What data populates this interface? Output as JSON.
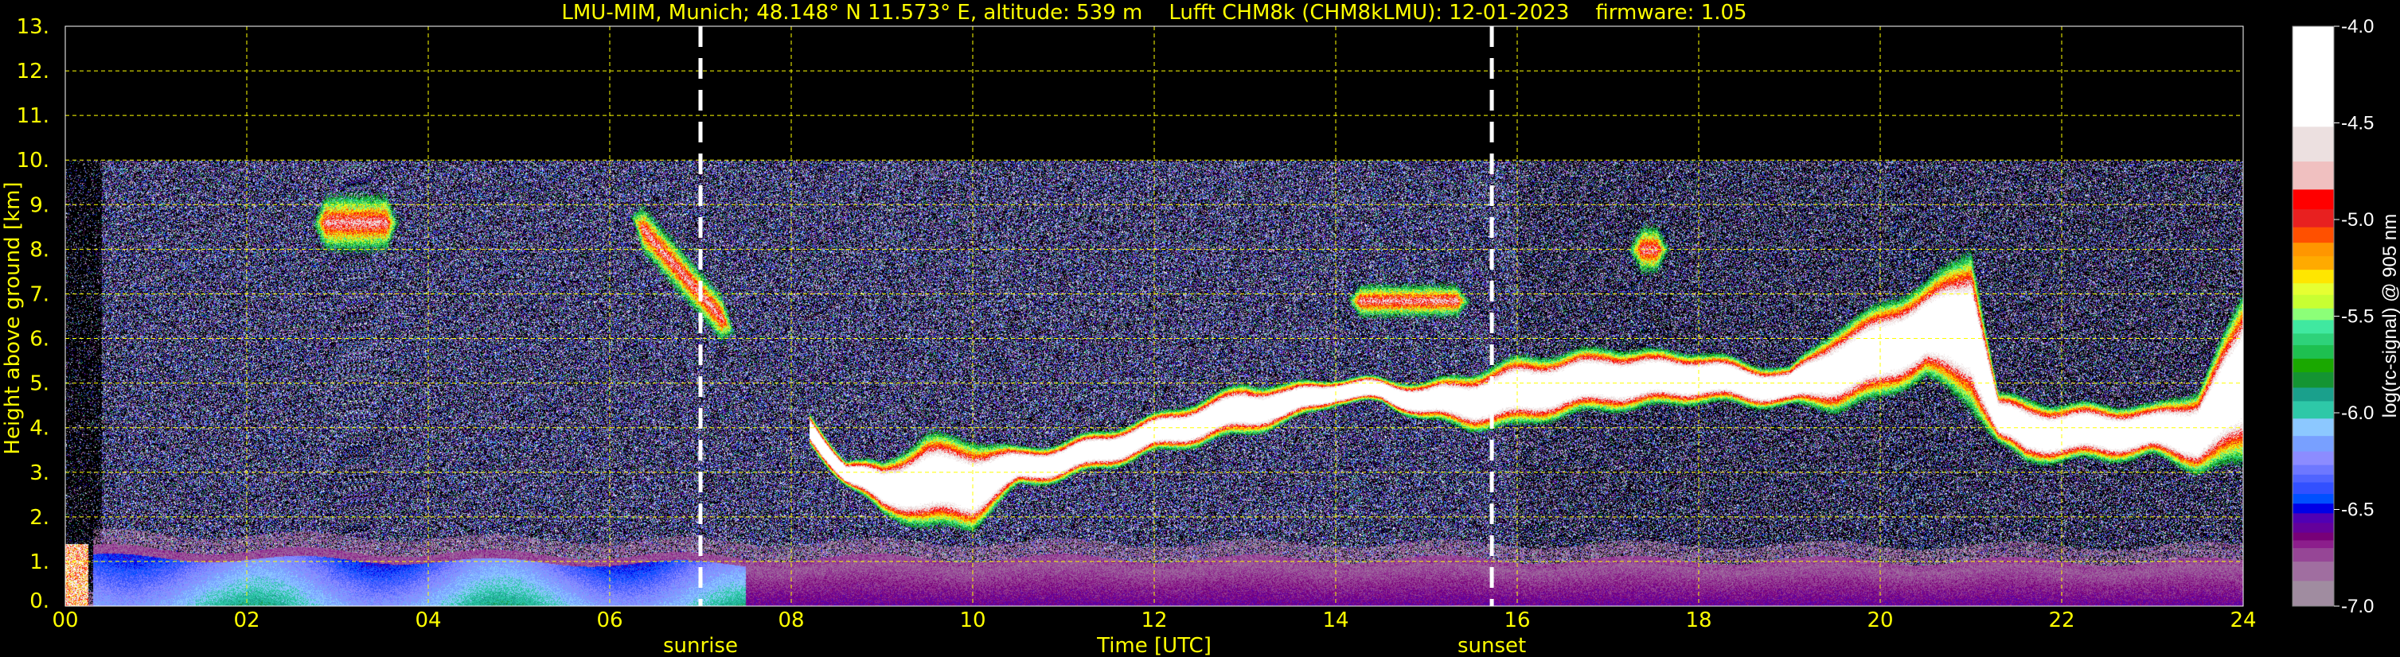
{
  "title": "LMU-MIM, Munich; 48.148° N 11.573° E, altitude: 539 m    Lufft CHM8k (CHM8kLMU): 12-01-2023    firmware: 1.05",
  "chart_data": {
    "type": "heatmap",
    "xlabel": "Time [UTC]",
    "ylabel": "Height above ground [km]",
    "xlim": [
      0,
      24
    ],
    "ylim": [
      0,
      13
    ],
    "x_ticks": [
      "00",
      "02",
      "04",
      "06",
      "08",
      "10",
      "12",
      "14",
      "16",
      "18",
      "20",
      "22",
      "24"
    ],
    "y_ticks": [
      "0.",
      "1.",
      "2.",
      "3.",
      "4.",
      "5.",
      "6.",
      "7.",
      "8.",
      "9.",
      "10.",
      "11.",
      "12.",
      "13."
    ],
    "grid": true,
    "grid_color": "#ffff00",
    "annotations": [
      {
        "label": "sunrise",
        "time": 7.0
      },
      {
        "label": "sunset",
        "time": 15.72
      }
    ],
    "signal_top_km": 10.0,
    "colorbar": {
      "label": "log(rc-signal) @ 905 nm",
      "range": [
        -7.0,
        -4.0
      ],
      "ticks": [
        "-4.0",
        "-4.5",
        "-5.0",
        "-5.5",
        "-6.0",
        "-6.5",
        "-7.0"
      ],
      "levels": [
        -4.0,
        -4.52,
        -4.7,
        -4.845,
        -4.947,
        -5.04,
        -5.12,
        -5.19,
        -5.26,
        -5.33,
        -5.39,
        -5.46,
        -5.52,
        -5.59,
        -5.65,
        -5.72,
        -5.79,
        -5.87,
        -5.94,
        -6.03,
        -6.12,
        -6.2,
        -6.27,
        -6.32,
        -6.36,
        -6.42,
        -6.47,
        -6.52,
        -6.57,
        -6.62,
        -6.66,
        -6.7,
        -6.77,
        -6.87,
        -7.0
      ],
      "colors": [
        "#ffffff",
        "#ece0e0",
        "#f0c0c0",
        "#ff0000",
        "#e82020",
        "#ff5000",
        "#ff9600",
        "#ffaa00",
        "#ffe600",
        "#e6ff32",
        "#c8ff32",
        "#8cff78",
        "#40e8a0",
        "#2ed27a",
        "#1ec050",
        "#1aa800",
        "#149432",
        "#1aa08c",
        "#2ec8a8",
        "#8cc8ff",
        "#78a0ff",
        "#8c8cff",
        "#6e78ff",
        "#5064ff",
        "#3250ff",
        "#0050ff",
        "#0000e6",
        "#5000b4",
        "#64009b",
        "#780078",
        "#8c1e8c",
        "#964696",
        "#a06ea0",
        "#a08ca0"
      ]
    },
    "cloud_layer": {
      "time": [
        8.2,
        8.6,
        9.0,
        9.5,
        10.0,
        10.5,
        11.0,
        11.5,
        12.0,
        12.5,
        13.0,
        13.5,
        14.0,
        14.5,
        15.0,
        15.5,
        16.0,
        16.5,
        17.0,
        17.5,
        18.0,
        18.5,
        19.0,
        19.5,
        20.0,
        20.5,
        21.0,
        21.3,
        21.6,
        22.0,
        22.5,
        23.0,
        23.5,
        24.0
      ],
      "base_km": [
        3.7,
        2.8,
        2.2,
        2.0,
        2.0,
        2.8,
        3.0,
        3.3,
        3.6,
        3.8,
        4.0,
        4.2,
        4.6,
        4.6,
        4.3,
        4.2,
        4.3,
        4.5,
        4.6,
        4.6,
        4.7,
        4.6,
        4.6,
        4.7,
        5.0,
        5.5,
        5.0,
        3.8,
        3.4,
        3.4,
        3.4,
        3.5,
        3.3,
        3.8
      ],
      "top_km": [
        4.2,
        3.2,
        3.0,
        3.5,
        3.4,
        3.4,
        3.6,
        3.9,
        4.2,
        4.5,
        4.8,
        4.8,
        5.0,
        5.0,
        4.9,
        5.1,
        5.4,
        5.5,
        5.6,
        5.5,
        5.5,
        5.3,
        5.2,
        6.0,
        6.5,
        7.0,
        7.5,
        4.6,
        4.4,
        4.3,
        4.3,
        4.3,
        4.6,
        6.5
      ]
    },
    "upper_clouds": [
      {
        "t0": 2.8,
        "t1": 3.6,
        "base_km": 8.0,
        "top_km": 9.2
      },
      {
        "t0": 6.3,
        "t1": 7.3,
        "base_km": 6.3,
        "top_km": 8.6
      },
      {
        "t0": 14.2,
        "t1": 15.4,
        "base_km": 6.5,
        "top_km": 7.2
      },
      {
        "t0": 17.3,
        "t1": 17.6,
        "base_km": 7.5,
        "top_km": 8.5
      },
      {
        "t0": 20.2,
        "t1": 20.6,
        "base_km": 5.5,
        "top_km": 6.5
      }
    ],
    "boundary_layer": {
      "time": [
        0.3,
        7.5,
        24.0
      ],
      "top_km": [
        1.3,
        1.1,
        1.0
      ]
    }
  }
}
